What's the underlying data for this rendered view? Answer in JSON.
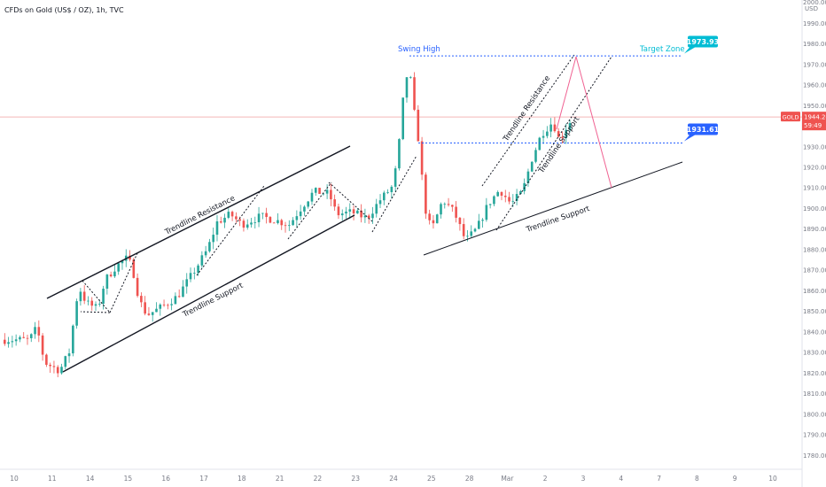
{
  "header": {
    "symbol_title": "CFDs on Gold (US$ / OZ), 1h, TVC"
  },
  "colors": {
    "up": "#26a69a",
    "down": "#ef5350",
    "blue": "#2962ff",
    "teal": "#00bcd4",
    "pink": "#f06292"
  },
  "chart_data": {
    "type": "candlestick",
    "title": "CFDs on Gold (US$ / OZ), 1h, TVC",
    "currency": "USD",
    "ylim": [
      1770,
      2000
    ],
    "y_ticks": [
      1780,
      1790,
      1800,
      1810,
      1820,
      1830,
      1840,
      1850,
      1860,
      1870,
      1880,
      1890,
      1900,
      1910,
      1920,
      1930,
      1940,
      1950,
      1960,
      1970,
      1980,
      1990,
      2000
    ],
    "x_ticks": [
      {
        "label": "10",
        "pos": 0.0
      },
      {
        "label": "11",
        "pos": 1.0
      },
      {
        "label": "14",
        "pos": 2.0
      },
      {
        "label": "15",
        "pos": 3.0
      },
      {
        "label": "16",
        "pos": 4.0
      },
      {
        "label": "17",
        "pos": 5.0
      },
      {
        "label": "18",
        "pos": 6.0
      },
      {
        "label": "21",
        "pos": 7.0
      },
      {
        "label": "22",
        "pos": 8.0
      },
      {
        "label": "23",
        "pos": 9.0
      },
      {
        "label": "24",
        "pos": 10.0
      },
      {
        "label": "25",
        "pos": 11.0
      },
      {
        "label": "28",
        "pos": 12.0
      },
      {
        "label": "Mar",
        "pos": 13.0
      },
      {
        "label": "2",
        "pos": 14.0
      },
      {
        "label": "3",
        "pos": 15.0
      },
      {
        "label": "4",
        "pos": 16.0
      },
      {
        "label": "7",
        "pos": 17.0
      },
      {
        "label": "8",
        "pos": 18.0
      },
      {
        "label": "9",
        "pos": 19.0
      },
      {
        "label": "10",
        "pos": 20.0
      }
    ],
    "price_path": [
      [
        -0.25,
        1836
      ],
      [
        0.5,
        1836
      ],
      [
        0.7,
        1842
      ],
      [
        0.9,
        1825
      ],
      [
        1.3,
        1821
      ],
      [
        1.55,
        1830
      ],
      [
        1.8,
        1862
      ],
      [
        2.0,
        1854
      ],
      [
        2.3,
        1851
      ],
      [
        2.5,
        1865
      ],
      [
        2.8,
        1872
      ],
      [
        3.1,
        1876
      ],
      [
        3.25,
        1868
      ],
      [
        3.4,
        1855
      ],
      [
        3.6,
        1848
      ],
      [
        4.0,
        1852
      ],
      [
        4.4,
        1857
      ],
      [
        4.8,
        1868
      ],
      [
        5.2,
        1880
      ],
      [
        5.45,
        1893
      ],
      [
        5.8,
        1897
      ],
      [
        6.1,
        1892
      ],
      [
        6.6,
        1896
      ],
      [
        7.0,
        1894
      ],
      [
        7.35,
        1892
      ],
      [
        7.7,
        1901
      ],
      [
        8.0,
        1908
      ],
      [
        8.4,
        1907
      ],
      [
        8.6,
        1897
      ],
      [
        9.0,
        1898
      ],
      [
        9.4,
        1895
      ],
      [
        9.75,
        1904
      ],
      [
        10.05,
        1910
      ],
      [
        10.2,
        1922
      ],
      [
        10.35,
        1952
      ],
      [
        10.5,
        1970
      ],
      [
        10.65,
        1946
      ],
      [
        10.8,
        1928
      ],
      [
        10.9,
        1902
      ],
      [
        11.1,
        1889
      ],
      [
        11.4,
        1904
      ],
      [
        11.7,
        1898
      ],
      [
        12.0,
        1884
      ],
      [
        12.3,
        1890
      ],
      [
        12.6,
        1902
      ],
      [
        12.9,
        1909
      ],
      [
        13.2,
        1902
      ],
      [
        13.5,
        1908
      ],
      [
        13.75,
        1924
      ],
      [
        14.0,
        1936
      ],
      [
        14.3,
        1942
      ],
      [
        14.45,
        1934
      ],
      [
        14.6,
        1936
      ],
      [
        14.7,
        1942
      ]
    ],
    "current_price": "1944.24",
    "countdown": "59:49",
    "symbol": "GOLD",
    "levels": [
      {
        "label": "1973.93",
        "value": 1973.93
      },
      {
        "label": "1931.61",
        "value": 1931.61
      }
    ],
    "annotations": [
      {
        "text": "Swing High"
      },
      {
        "text": "Target Zone"
      },
      {
        "text": "Trendline Resistance"
      },
      {
        "text": "Trendline Support"
      },
      {
        "text": "Trendline Resistance"
      },
      {
        "text": "Trendline Support"
      },
      {
        "text": "Trendline Support"
      }
    ]
  }
}
